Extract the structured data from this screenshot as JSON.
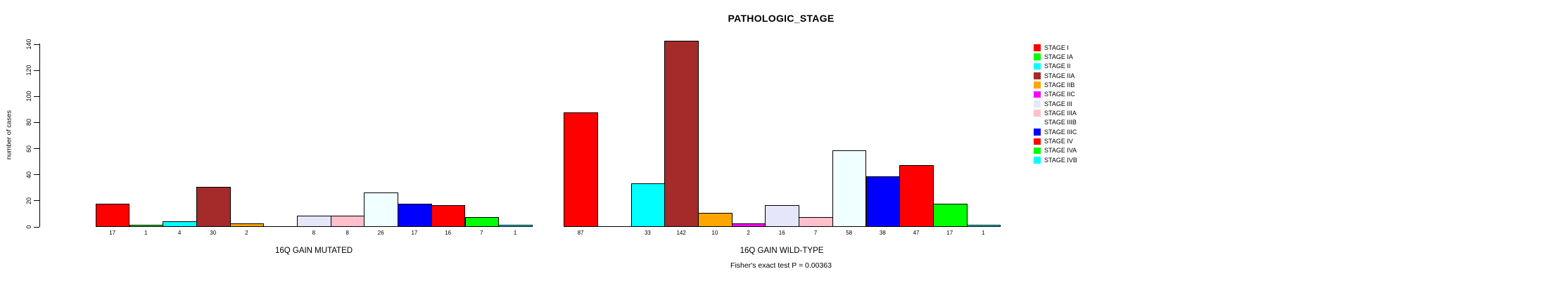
{
  "chart_data": {
    "type": "bar",
    "title": "PATHOLOGIC_STAGE",
    "ylabel": "number of cases",
    "xlabel": "",
    "ylim": [
      0,
      140
    ],
    "yticks": [
      0,
      20,
      40,
      60,
      80,
      100,
      120,
      140
    ],
    "grid": false,
    "legend_position": "right",
    "bar_value_labels": "shown under each bar; zero-count slots left blank",
    "categories": [
      "STAGE I",
      "STAGE IA",
      "STAGE II",
      "STAGE IIA",
      "STAGE IIB",
      "STAGE IIC",
      "STAGE III",
      "STAGE IIIA",
      "STAGE IIIB",
      "STAGE IIIC",
      "STAGE IV",
      "STAGE IVA",
      "STAGE IVB"
    ],
    "colors": [
      "#FF0000",
      "#00FF00",
      "#00FFFF",
      "#A52A2A",
      "#FFA500",
      "#FF00FF",
      "#E6E6FA",
      "#FFC0CB",
      "#F0FFFF",
      "#0000FF",
      "#FF0000",
      "#00FF00",
      "#00FFFF"
    ],
    "series": [
      {
        "name": "16Q GAIN MUTATED",
        "values": [
          17,
          1,
          4,
          30,
          2,
          0,
          8,
          8,
          26,
          17,
          16,
          7,
          1
        ]
      },
      {
        "name": "16Q GAIN WILD-TYPE",
        "values": [
          87,
          0,
          33,
          142,
          10,
          2,
          16,
          7,
          58,
          38,
          47,
          17,
          1
        ]
      }
    ],
    "legend_entries": [
      {
        "label": "STAGE I",
        "color": "#FF0000"
      },
      {
        "label": "STAGE IA",
        "color": "#00FF00"
      },
      {
        "label": "STAGE II",
        "color": "#00FFFF"
      },
      {
        "label": "STAGE IIA",
        "color": "#A52A2A"
      },
      {
        "label": "STAGE IIB",
        "color": "#FFA500"
      },
      {
        "label": "STAGE IIC",
        "color": "#FF00FF"
      },
      {
        "label": "STAGE III",
        "color": "#E6E6FA"
      },
      {
        "label": "STAGE IIIA",
        "color": "#FFC0CB"
      },
      {
        "label": "STAGE IIIB",
        "color": "#F0FFFF"
      },
      {
        "label": "STAGE IIIC",
        "color": "#0000FF"
      },
      {
        "label": "STAGE IV",
        "color": "#FF0000"
      },
      {
        "label": "STAGE IVA",
        "color": "#00FF00"
      },
      {
        "label": "STAGE IVB",
        "color": "#00FFFF"
      }
    ],
    "annotation": "Fisher's exact test P = 0.00363"
  }
}
